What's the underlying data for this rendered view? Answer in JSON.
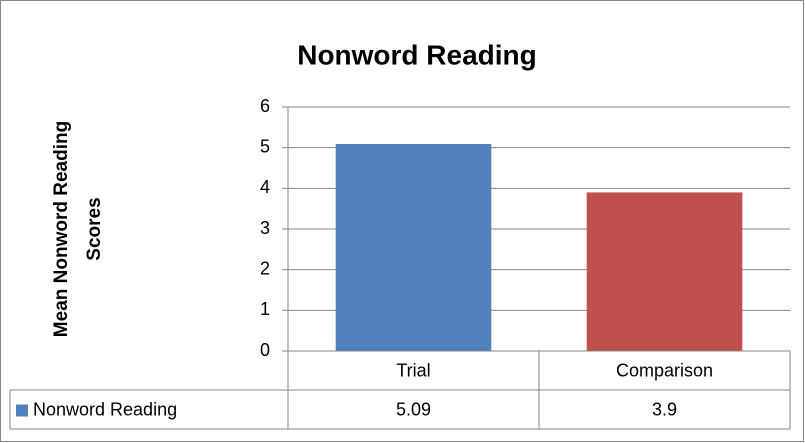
{
  "chart_data": {
    "type": "bar",
    "title": "Nonword Reading",
    "y_label": [
      "Mean Nonword Reading",
      "Scores"
    ],
    "categories": [
      "Trial",
      "Comparison"
    ],
    "series": [
      {
        "name": "Nonword Reading",
        "color": "#4f81bd",
        "values": [
          5.09,
          3.9
        ]
      }
    ],
    "point_colors": [
      "#4f81bd",
      "#c0504d"
    ],
    "ylim": [
      0,
      6
    ],
    "yticks": [
      0,
      1,
      2,
      3,
      4,
      5,
      6
    ],
    "grid": true,
    "data_table": true
  }
}
